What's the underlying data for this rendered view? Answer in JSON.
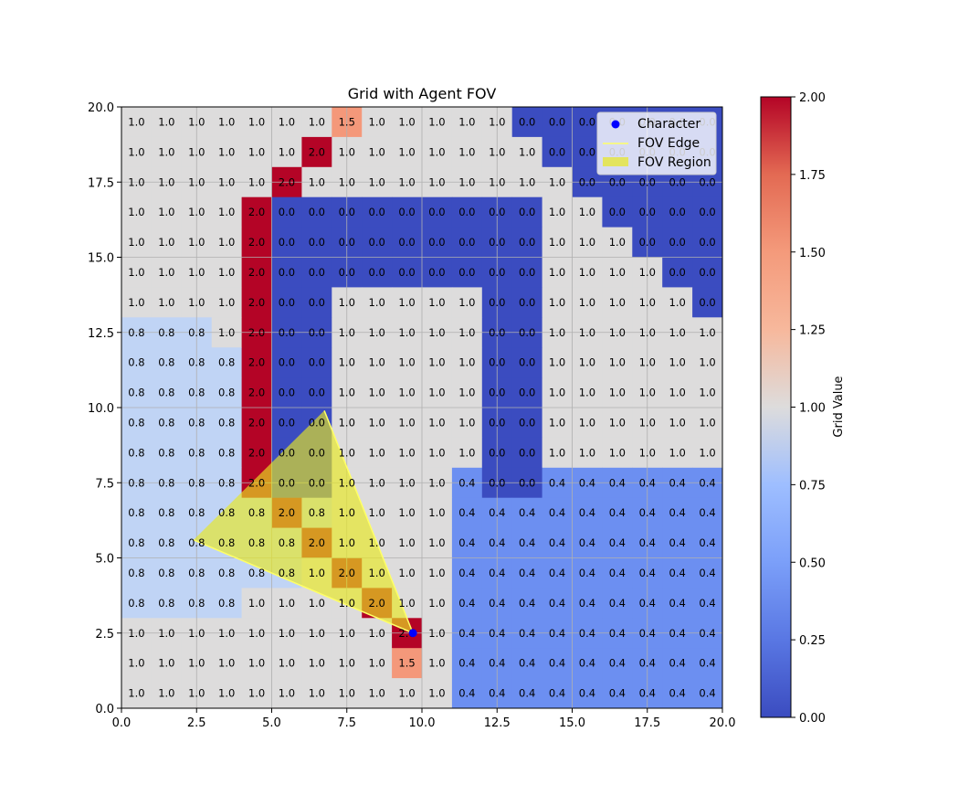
{
  "chart_data": {
    "type": "heatmap",
    "title": "Grid with Agent FOV",
    "xlabel": "",
    "ylabel": "",
    "xlim": [
      0,
      20
    ],
    "ylim": [
      0,
      20
    ],
    "xticks": [
      "0.0",
      "2.5",
      "5.0",
      "7.5",
      "10.0",
      "12.5",
      "15.0",
      "17.5",
      "20.0"
    ],
    "yticks": [
      "0.0",
      "2.5",
      "5.0",
      "7.5",
      "10.0",
      "12.5",
      "15.0",
      "17.5",
      "20.0"
    ],
    "grid": true,
    "colormap": "coolwarm",
    "colorbar": {
      "label": "Grid Value",
      "range": [
        0,
        2
      ],
      "ticks": [
        "0.00",
        "0.25",
        "0.50",
        "0.75",
        "1.00",
        "1.25",
        "1.50",
        "1.75",
        "2.00"
      ]
    },
    "rows_top_to_bottom": [
      [
        1.0,
        1.0,
        1.0,
        1.0,
        1.0,
        1.0,
        1.0,
        1.5,
        1.0,
        1.0,
        1.0,
        1.0,
        1.0,
        0.0,
        0.0,
        0.0,
        0.0,
        0.0,
        0.0,
        0.0
      ],
      [
        1.0,
        1.0,
        1.0,
        1.0,
        1.0,
        1.0,
        2.0,
        1.0,
        1.0,
        1.0,
        1.0,
        1.0,
        1.0,
        1.0,
        0.0,
        0.0,
        0.0,
        0.0,
        0.0,
        0.0
      ],
      [
        1.0,
        1.0,
        1.0,
        1.0,
        1.0,
        2.0,
        1.0,
        1.0,
        1.0,
        1.0,
        1.0,
        1.0,
        1.0,
        1.0,
        1.0,
        0.0,
        0.0,
        0.0,
        0.0,
        0.0
      ],
      [
        1.0,
        1.0,
        1.0,
        1.0,
        2.0,
        0.0,
        0.0,
        0.0,
        0.0,
        0.0,
        0.0,
        0.0,
        0.0,
        0.0,
        1.0,
        1.0,
        0.0,
        0.0,
        0.0,
        0.0
      ],
      [
        1.0,
        1.0,
        1.0,
        1.0,
        2.0,
        0.0,
        0.0,
        0.0,
        0.0,
        0.0,
        0.0,
        0.0,
        0.0,
        0.0,
        1.0,
        1.0,
        1.0,
        0.0,
        0.0,
        0.0
      ],
      [
        1.0,
        1.0,
        1.0,
        1.0,
        2.0,
        0.0,
        0.0,
        0.0,
        0.0,
        0.0,
        0.0,
        0.0,
        0.0,
        0.0,
        1.0,
        1.0,
        1.0,
        1.0,
        0.0,
        0.0
      ],
      [
        1.0,
        1.0,
        1.0,
        1.0,
        2.0,
        0.0,
        0.0,
        1.0,
        1.0,
        1.0,
        1.0,
        1.0,
        0.0,
        0.0,
        1.0,
        1.0,
        1.0,
        1.0,
        1.0,
        0.0
      ],
      [
        0.8,
        0.8,
        0.8,
        1.0,
        2.0,
        0.0,
        0.0,
        1.0,
        1.0,
        1.0,
        1.0,
        1.0,
        0.0,
        0.0,
        1.0,
        1.0,
        1.0,
        1.0,
        1.0,
        1.0
      ],
      [
        0.8,
        0.8,
        0.8,
        0.8,
        2.0,
        0.0,
        0.0,
        1.0,
        1.0,
        1.0,
        1.0,
        1.0,
        0.0,
        0.0,
        1.0,
        1.0,
        1.0,
        1.0,
        1.0,
        1.0
      ],
      [
        0.8,
        0.8,
        0.8,
        0.8,
        2.0,
        0.0,
        0.0,
        1.0,
        1.0,
        1.0,
        1.0,
        1.0,
        0.0,
        0.0,
        1.0,
        1.0,
        1.0,
        1.0,
        1.0,
        1.0
      ],
      [
        0.8,
        0.8,
        0.8,
        0.8,
        2.0,
        0.0,
        0.0,
        1.0,
        1.0,
        1.0,
        1.0,
        1.0,
        0.0,
        0.0,
        1.0,
        1.0,
        1.0,
        1.0,
        1.0,
        1.0
      ],
      [
        0.8,
        0.8,
        0.8,
        0.8,
        2.0,
        0.0,
        0.0,
        1.0,
        1.0,
        1.0,
        1.0,
        1.0,
        0.0,
        0.0,
        1.0,
        1.0,
        1.0,
        1.0,
        1.0,
        1.0
      ],
      [
        0.8,
        0.8,
        0.8,
        0.8,
        2.0,
        0.0,
        0.0,
        1.0,
        1.0,
        1.0,
        1.0,
        0.4,
        0.0,
        0.0,
        0.4,
        0.4,
        0.4,
        0.4,
        0.4,
        0.4
      ],
      [
        0.8,
        0.8,
        0.8,
        0.8,
        0.8,
        2.0,
        0.8,
        1.0,
        1.0,
        1.0,
        1.0,
        0.4,
        0.4,
        0.4,
        0.4,
        0.4,
        0.4,
        0.4,
        0.4,
        0.4
      ],
      [
        0.8,
        0.8,
        0.8,
        0.8,
        0.8,
        0.8,
        2.0,
        1.0,
        1.0,
        1.0,
        1.0,
        0.4,
        0.4,
        0.4,
        0.4,
        0.4,
        0.4,
        0.4,
        0.4,
        0.4
      ],
      [
        0.8,
        0.8,
        0.8,
        0.8,
        0.8,
        0.8,
        1.0,
        2.0,
        1.0,
        1.0,
        1.0,
        0.4,
        0.4,
        0.4,
        0.4,
        0.4,
        0.4,
        0.4,
        0.4,
        0.4
      ],
      [
        0.8,
        0.8,
        0.8,
        0.8,
        1.0,
        1.0,
        1.0,
        1.0,
        2.0,
        1.0,
        1.0,
        0.4,
        0.4,
        0.4,
        0.4,
        0.4,
        0.4,
        0.4,
        0.4,
        0.4
      ],
      [
        1.0,
        1.0,
        1.0,
        1.0,
        1.0,
        1.0,
        1.0,
        1.0,
        1.0,
        2.0,
        1.0,
        0.4,
        0.4,
        0.4,
        0.4,
        0.4,
        0.4,
        0.4,
        0.4,
        0.4
      ],
      [
        1.0,
        1.0,
        1.0,
        1.0,
        1.0,
        1.0,
        1.0,
        1.0,
        1.0,
        1.5,
        1.0,
        0.4,
        0.4,
        0.4,
        0.4,
        0.4,
        0.4,
        0.4,
        0.4,
        0.4
      ],
      [
        1.0,
        1.0,
        1.0,
        1.0,
        1.0,
        1.0,
        1.0,
        1.0,
        1.0,
        1.0,
        1.0,
        0.4,
        0.4,
        0.4,
        0.4,
        0.4,
        0.4,
        0.4,
        0.4,
        0.4
      ]
    ],
    "character": {
      "name": "Character",
      "x": 9.7,
      "y": 2.5,
      "color": "#0000ff"
    },
    "fov": {
      "edge_name": "FOV Edge",
      "region_name": "FOV Region",
      "polygon": [
        [
          9.7,
          2.5
        ],
        [
          6.75,
          9.9
        ],
        [
          2.4,
          5.6
        ]
      ],
      "color": "#e8e820"
    },
    "legend": {
      "position": "top-right",
      "entries": [
        "Character",
        "FOV Edge",
        "FOV Region"
      ]
    }
  }
}
